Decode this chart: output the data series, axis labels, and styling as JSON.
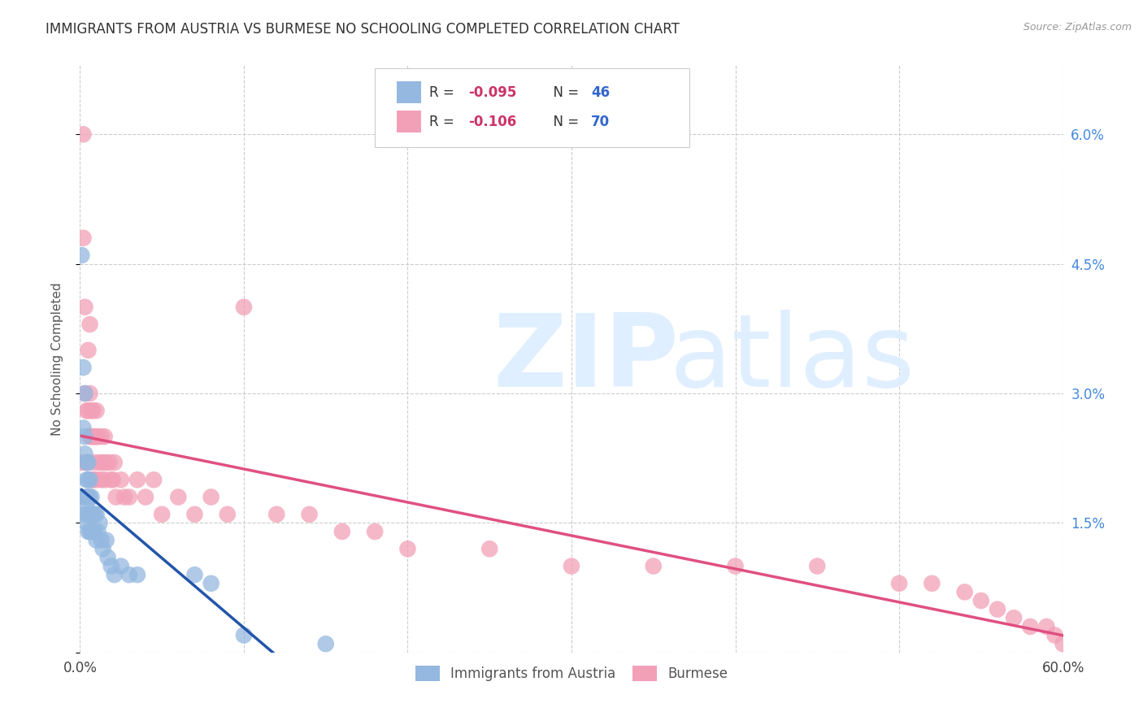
{
  "title": "IMMIGRANTS FROM AUSTRIA VS BURMESE NO SCHOOLING COMPLETED CORRELATION CHART",
  "source": "Source: ZipAtlas.com",
  "ylabel": "No Schooling Completed",
  "xmin": 0.0,
  "xmax": 0.6,
  "ymin": 0.0,
  "ymax": 0.068,
  "yticks": [
    0.0,
    0.015,
    0.03,
    0.045,
    0.06
  ],
  "ytick_labels": [
    "",
    "1.5%",
    "3.0%",
    "4.5%",
    "6.0%"
  ],
  "xticks": [
    0.0,
    0.1,
    0.2,
    0.3,
    0.4,
    0.5,
    0.6
  ],
  "xtick_labels": [
    "0.0%",
    "",
    "",
    "",
    "",
    "",
    "60.0%"
  ],
  "legend_r1": "-0.095",
  "legend_n1": "46",
  "legend_r2": "-0.106",
  "legend_n2": "70",
  "scatter_austria_color": "#94b8e0",
  "scatter_burmese_color": "#f2a0b8",
  "line_austria_color": "#2255aa",
  "line_burmese_color": "#e05080",
  "background_color": "#ffffff",
  "grid_color": "#cccccc",
  "austria_x": [
    0.001,
    0.001,
    0.002,
    0.002,
    0.003,
    0.003,
    0.003,
    0.003,
    0.004,
    0.004,
    0.004,
    0.004,
    0.004,
    0.005,
    0.005,
    0.005,
    0.005,
    0.005,
    0.006,
    0.006,
    0.006,
    0.006,
    0.007,
    0.007,
    0.007,
    0.008,
    0.008,
    0.009,
    0.009,
    0.01,
    0.01,
    0.011,
    0.012,
    0.013,
    0.014,
    0.016,
    0.017,
    0.019,
    0.021,
    0.025,
    0.03,
    0.035,
    0.07,
    0.08,
    0.1,
    0.15
  ],
  "austria_y": [
    0.046,
    0.018,
    0.033,
    0.026,
    0.03,
    0.025,
    0.023,
    0.016,
    0.022,
    0.02,
    0.018,
    0.017,
    0.015,
    0.022,
    0.02,
    0.018,
    0.016,
    0.014,
    0.02,
    0.018,
    0.016,
    0.014,
    0.018,
    0.016,
    0.014,
    0.016,
    0.014,
    0.016,
    0.014,
    0.016,
    0.013,
    0.014,
    0.015,
    0.013,
    0.012,
    0.013,
    0.011,
    0.01,
    0.009,
    0.01,
    0.009,
    0.009,
    0.009,
    0.008,
    0.002,
    0.001
  ],
  "burmese_x": [
    0.001,
    0.002,
    0.002,
    0.003,
    0.003,
    0.004,
    0.004,
    0.004,
    0.005,
    0.005,
    0.005,
    0.006,
    0.006,
    0.006,
    0.007,
    0.007,
    0.007,
    0.008,
    0.008,
    0.008,
    0.009,
    0.009,
    0.01,
    0.01,
    0.01,
    0.011,
    0.012,
    0.013,
    0.013,
    0.014,
    0.015,
    0.015,
    0.016,
    0.018,
    0.019,
    0.02,
    0.021,
    0.022,
    0.025,
    0.027,
    0.03,
    0.035,
    0.04,
    0.045,
    0.05,
    0.06,
    0.07,
    0.08,
    0.09,
    0.1,
    0.12,
    0.14,
    0.16,
    0.18,
    0.2,
    0.25,
    0.3,
    0.35,
    0.4,
    0.45,
    0.5,
    0.52,
    0.54,
    0.55,
    0.56,
    0.57,
    0.58,
    0.59,
    0.595,
    0.6
  ],
  "burmese_y": [
    0.022,
    0.06,
    0.048,
    0.04,
    0.03,
    0.028,
    0.022,
    0.018,
    0.035,
    0.028,
    0.022,
    0.038,
    0.03,
    0.025,
    0.028,
    0.025,
    0.02,
    0.028,
    0.025,
    0.02,
    0.025,
    0.022,
    0.028,
    0.025,
    0.02,
    0.025,
    0.022,
    0.025,
    0.02,
    0.022,
    0.025,
    0.02,
    0.022,
    0.022,
    0.02,
    0.02,
    0.022,
    0.018,
    0.02,
    0.018,
    0.018,
    0.02,
    0.018,
    0.02,
    0.016,
    0.018,
    0.016,
    0.018,
    0.016,
    0.04,
    0.016,
    0.016,
    0.014,
    0.014,
    0.012,
    0.012,
    0.01,
    0.01,
    0.01,
    0.01,
    0.008,
    0.008,
    0.007,
    0.006,
    0.005,
    0.004,
    0.003,
    0.003,
    0.002,
    0.001
  ]
}
